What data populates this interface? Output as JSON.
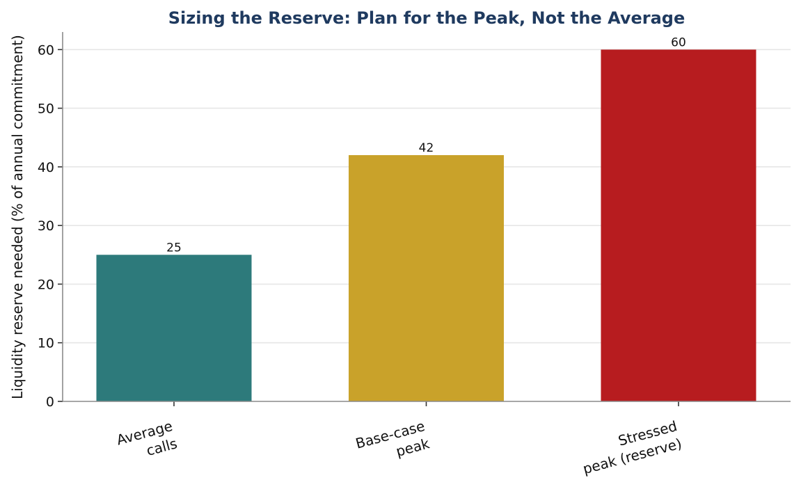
{
  "chart_data": {
    "type": "bar",
    "title": "Sizing the Reserve: Plan for the Peak, Not the Average",
    "xlabel": "",
    "ylabel": "Liquidity reserve needed (% of annual commitment)",
    "categories": [
      [
        "Average",
        "calls"
      ],
      [
        "Base-case",
        "peak"
      ],
      [
        "Stressed",
        "peak (reserve)"
      ]
    ],
    "values": [
      25,
      42,
      60
    ],
    "data_labels": [
      "25",
      "42",
      "60"
    ],
    "colors": [
      "#2d7a7b",
      "#c9a22a",
      "#b71c1f"
    ],
    "ylim": [
      0,
      63
    ],
    "yticks": [
      0,
      10,
      20,
      30,
      40,
      50,
      60
    ],
    "grid": "horizontal",
    "legend": "none"
  }
}
